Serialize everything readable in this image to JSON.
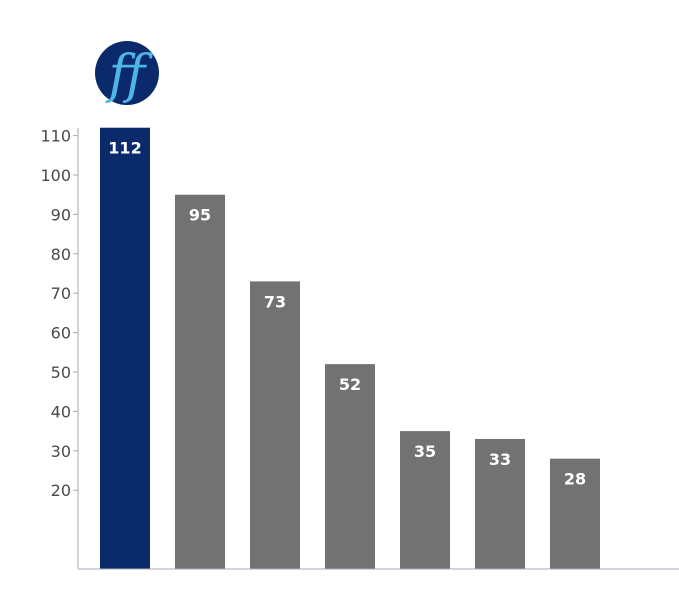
{
  "chart_data": {
    "type": "bar",
    "categories": [
      "",
      "",
      "",
      "",
      "",
      "",
      ""
    ],
    "values": [
      112,
      95,
      73,
      52,
      35,
      33,
      28
    ],
    "data_labels": [
      "112",
      "95",
      "73",
      "52",
      "35",
      "33",
      "28"
    ],
    "title": "",
    "xlabel": "",
    "ylabel": "",
    "ylim": [
      0,
      115
    ],
    "yticks": [
      20,
      30,
      40,
      50,
      60,
      70,
      80,
      90,
      100,
      110
    ],
    "ytick_labels": [
      "20",
      "30",
      "40",
      "50",
      "60",
      "70",
      "80",
      "90",
      "100",
      "110"
    ],
    "grid": false,
    "legend": "none",
    "colors": {
      "highlight_bar": "#0a2a6b",
      "bar": "#727272",
      "axis": "#a8a8b8",
      "logo_circle": "#0a2a6b",
      "logo_letters": "#4fb4e6"
    },
    "highlight_index": 0,
    "logo_text": "ff"
  }
}
